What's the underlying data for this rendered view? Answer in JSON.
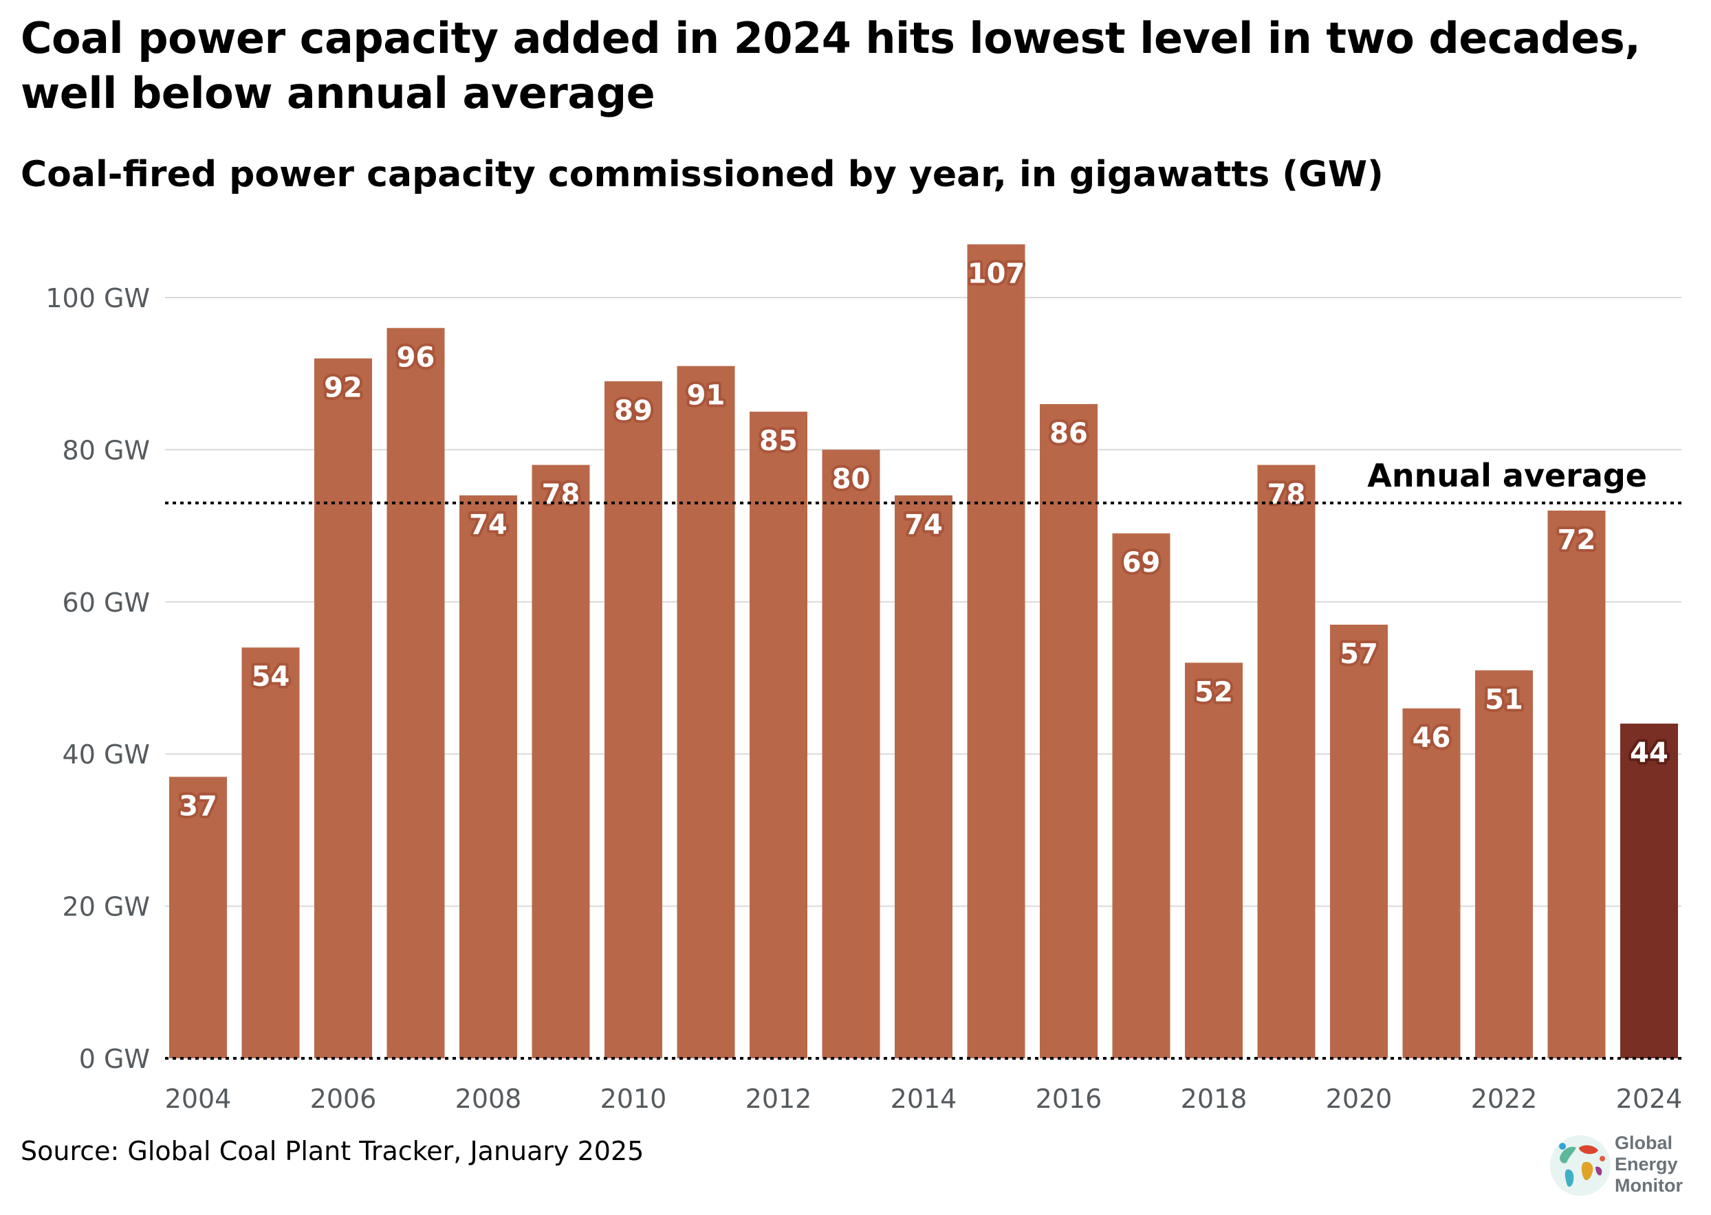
{
  "title": "Coal power capacity added in 2024 hits lowest level in two decades, well below annual average",
  "subtitle": "Coal-fired power capacity commissioned by year, in gigawatts (GW)",
  "source": "Source: Global Coal Plant Tracker, January 2025",
  "logo": {
    "line1": "Global",
    "line2": "Energy",
    "line3": "Monitor"
  },
  "colors": {
    "bar": "#b86849",
    "bar_highlight": "#7a2f24",
    "label_halo": "#a9553a",
    "label_halo_highlight": "#5e1f17",
    "grid": "#d9d9d9",
    "avg_line": "#000000"
  },
  "chart_data": {
    "type": "bar",
    "title": "Coal power capacity added in 2024 hits lowest level in two decades, well below annual average",
    "subtitle": "Coal-fired power capacity commissioned by year, in gigawatts (GW)",
    "categories": [
      "2004",
      "2005",
      "2006",
      "2007",
      "2008",
      "2009",
      "2010",
      "2011",
      "2012",
      "2013",
      "2014",
      "2015",
      "2016",
      "2017",
      "2018",
      "2019",
      "2020",
      "2021",
      "2022",
      "2023",
      "2024"
    ],
    "values": [
      37,
      54,
      92,
      96,
      74,
      78,
      89,
      91,
      85,
      80,
      74,
      107,
      86,
      69,
      52,
      78,
      57,
      46,
      51,
      72,
      44
    ],
    "data_labels": [
      "37",
      "54",
      "92",
      "96",
      "74",
      "78",
      "89",
      "91",
      "85",
      "80",
      "74",
      "107",
      "86",
      "69",
      "52",
      "78",
      "57",
      "46",
      "51",
      "72",
      "44"
    ],
    "highlight_category": "2024",
    "x_tick_labels": [
      "2004",
      "2006",
      "2008",
      "2010",
      "2012",
      "2014",
      "2016",
      "2018",
      "2020",
      "2022",
      "2024"
    ],
    "y_ticks": [
      0,
      20,
      40,
      60,
      80,
      100
    ],
    "y_tick_labels": [
      "0 GW",
      "20 GW",
      "40 GW",
      "60 GW",
      "80 GW",
      "100 GW"
    ],
    "ylim": [
      0,
      107
    ],
    "xlabel": "",
    "ylabel": "",
    "grid": true,
    "reference_line": {
      "label": "Annual average",
      "value": 73,
      "style": "dotted"
    },
    "legend": "none"
  }
}
